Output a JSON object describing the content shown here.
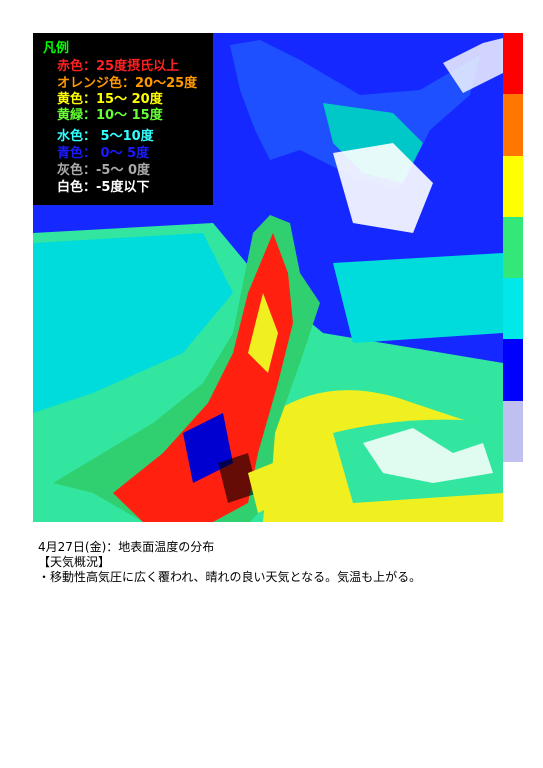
{
  "legend": {
    "title": "凡例",
    "title_color": "#00ff00",
    "items": [
      {
        "text": "赤色：25度摂氏以上",
        "color": "#ff2020"
      },
      {
        "text": "オレンジ色：20～25度",
        "color": "#ff9900"
      },
      {
        "text": "黄色：15～ 20度",
        "color": "#ffff00"
      },
      {
        "text": "黄緑：10～ 15度",
        "color": "#66ff33"
      },
      {
        "text": "水色： 5～10度",
        "color": "#33ffff"
      },
      {
        "text": "青色： 0～ 5度",
        "color": "#1a1aff"
      },
      {
        "text": "灰色：-5～ 0度",
        "color": "#aaaaaa"
      },
      {
        "text": "白色：-5度以下",
        "color": "#ffffff"
      }
    ]
  },
  "color_bar": [
    "#ff0000",
    "#ff7700",
    "#ffff00",
    "#33e878",
    "#00e8e8",
    "#0000ff",
    "#c0c0f0"
  ],
  "caption": {
    "line1": "4月27日(金)：地表面温度の分布",
    "line2": "【天気概況】",
    "line3": "・移動性高気圧に広く覆われ、晴れの良い天気となる。気温も上がる。"
  }
}
